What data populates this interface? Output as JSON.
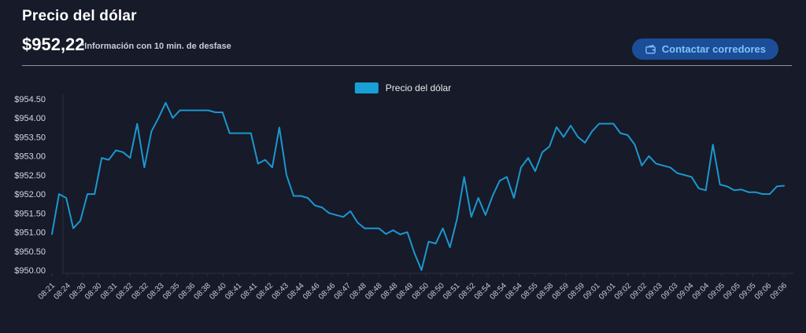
{
  "header": {
    "title": "Precio del dólar",
    "price": "$952,22",
    "note": "*Información con 10 min. de desfase",
    "button_label": "Contactar corredores"
  },
  "legend": {
    "label": "Precio del dólar",
    "swatch_color": "#18a0d6"
  },
  "colors": {
    "background": "#171a28",
    "line": "#1b97d0",
    "button_bg": "#1b4d99",
    "button_text": "#7fc3f4",
    "axis": "#2b3048",
    "divider": "#8f93a2"
  },
  "chart_data": {
    "type": "line",
    "title": "Precio del dólar",
    "series_name": "Precio del dólar",
    "legend_position": "top-center",
    "grid": false,
    "xlabel": "",
    "ylabel": "",
    "ylim": [
      950.0,
      954.5
    ],
    "y_ticks": [
      "$954.50",
      "$954.00",
      "$953.50",
      "$953.00",
      "$952.50",
      "$952.00",
      "$951.50",
      "$951.00",
      "$950.50",
      "$950.00"
    ],
    "x_ticks": [
      "08:21",
      "08:24",
      "08:30",
      "08:30",
      "08:31",
      "08:32",
      "08:32",
      "08:33",
      "08:35",
      "08:36",
      "08:38",
      "08:40",
      "08:41",
      "08:41",
      "08:42",
      "08:43",
      "08:44",
      "08:46",
      "08:46",
      "08:47",
      "08:48",
      "08:48",
      "08:48",
      "08:49",
      "08:50",
      "08:50",
      "08:51",
      "08:52",
      "08:54",
      "08:54",
      "08:54",
      "08:55",
      "08:58",
      "08:59",
      "08:59",
      "09:01",
      "09:01",
      "09:02",
      "09:02",
      "09:03",
      "09:03",
      "09:04",
      "09:04",
      "09:05",
      "09:05",
      "09:05",
      "09:06",
      "09:06"
    ],
    "values": [
      950.95,
      952.0,
      951.9,
      951.1,
      951.3,
      952.0,
      952.0,
      952.95,
      952.9,
      953.15,
      953.1,
      952.95,
      953.85,
      952.7,
      953.65,
      954.0,
      954.4,
      954.0,
      954.2,
      954.2,
      954.2,
      954.2,
      954.2,
      954.15,
      954.15,
      953.6,
      953.6,
      953.6,
      953.6,
      952.8,
      952.9,
      952.7,
      953.75,
      952.5,
      951.95,
      951.95,
      951.9,
      951.7,
      951.65,
      951.5,
      951.45,
      951.4,
      951.55,
      951.25,
      951.1,
      951.1,
      951.1,
      950.95,
      951.05,
      950.94,
      951.0,
      950.45,
      950.0,
      950.75,
      950.7,
      951.1,
      950.6,
      951.35,
      952.45,
      951.4,
      951.9,
      951.45,
      951.95,
      952.35,
      952.45,
      951.9,
      952.7,
      952.95,
      952.6,
      953.1,
      953.25,
      953.76,
      953.5,
      953.8,
      953.5,
      953.35,
      953.65,
      953.85,
      953.85,
      953.85,
      953.6,
      953.55,
      953.3,
      952.75,
      953.0,
      952.8,
      952.75,
      952.7,
      952.55,
      952.5,
      952.45,
      952.15,
      952.1,
      953.3,
      952.25,
      952.2,
      952.1,
      952.12,
      952.05,
      952.05,
      952.0,
      952.0,
      952.2,
      952.22
    ]
  }
}
